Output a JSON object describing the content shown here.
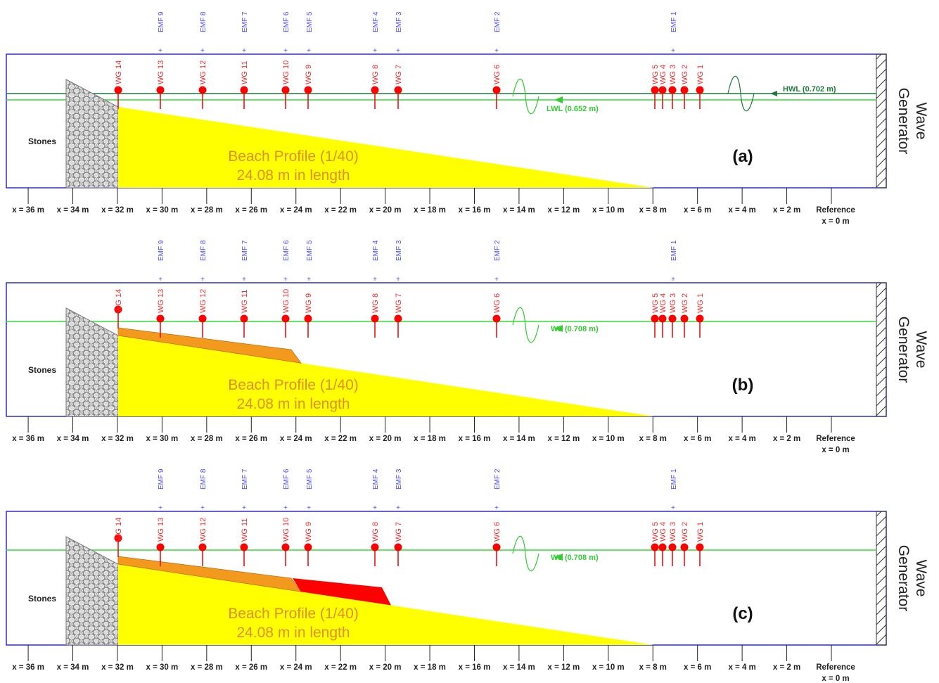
{
  "emf_labels": [
    "EMF 9",
    "EMF 8",
    "EMF 7",
    "EMF 6",
    "EMF 5",
    "EMF 4",
    "EMF 3",
    "EMF 2",
    "EMF 1"
  ],
  "wg_labels": [
    "WG 14",
    "WG 13",
    "WG 12",
    "WG 11",
    "WG 10",
    "WG 9",
    "WG 8",
    "WG 7",
    "WG 6",
    "WG 5",
    "WG 4",
    "WG 3",
    "WG 2",
    "WG 1"
  ],
  "stones": "Stones",
  "beach": [
    "Beach Profile (1/40)",
    "24.08 m in length"
  ],
  "wave_generator": [
    "Wave",
    "Generator"
  ],
  "x_axis": {
    "labels": [
      "x = 36 m",
      "x = 34 m",
      "x = 32 m",
      "x = 30 m",
      "x = 28 m",
      "x = 26 m",
      "x = 24 m",
      "x = 22 m",
      "x = 20 m",
      "x = 18 m",
      "x = 16 m",
      "x = 14 m",
      "x = 12 m",
      "x = 10 m",
      "x = 8 m",
      "x = 6 m",
      "x = 4 m",
      "x = 2 m"
    ],
    "reference": [
      "Reference",
      "x = 0 m"
    ]
  },
  "panels": [
    {
      "letter": "(a)",
      "levels": [
        "HWL (0.702 m)",
        "LWL (0.652 m)"
      ]
    },
    {
      "letter": "(b)",
      "levels": [
        "WL (0.708 m)"
      ]
    },
    {
      "letter": "(c)",
      "levels": [
        "WL (0.708 m)"
      ]
    }
  ]
}
